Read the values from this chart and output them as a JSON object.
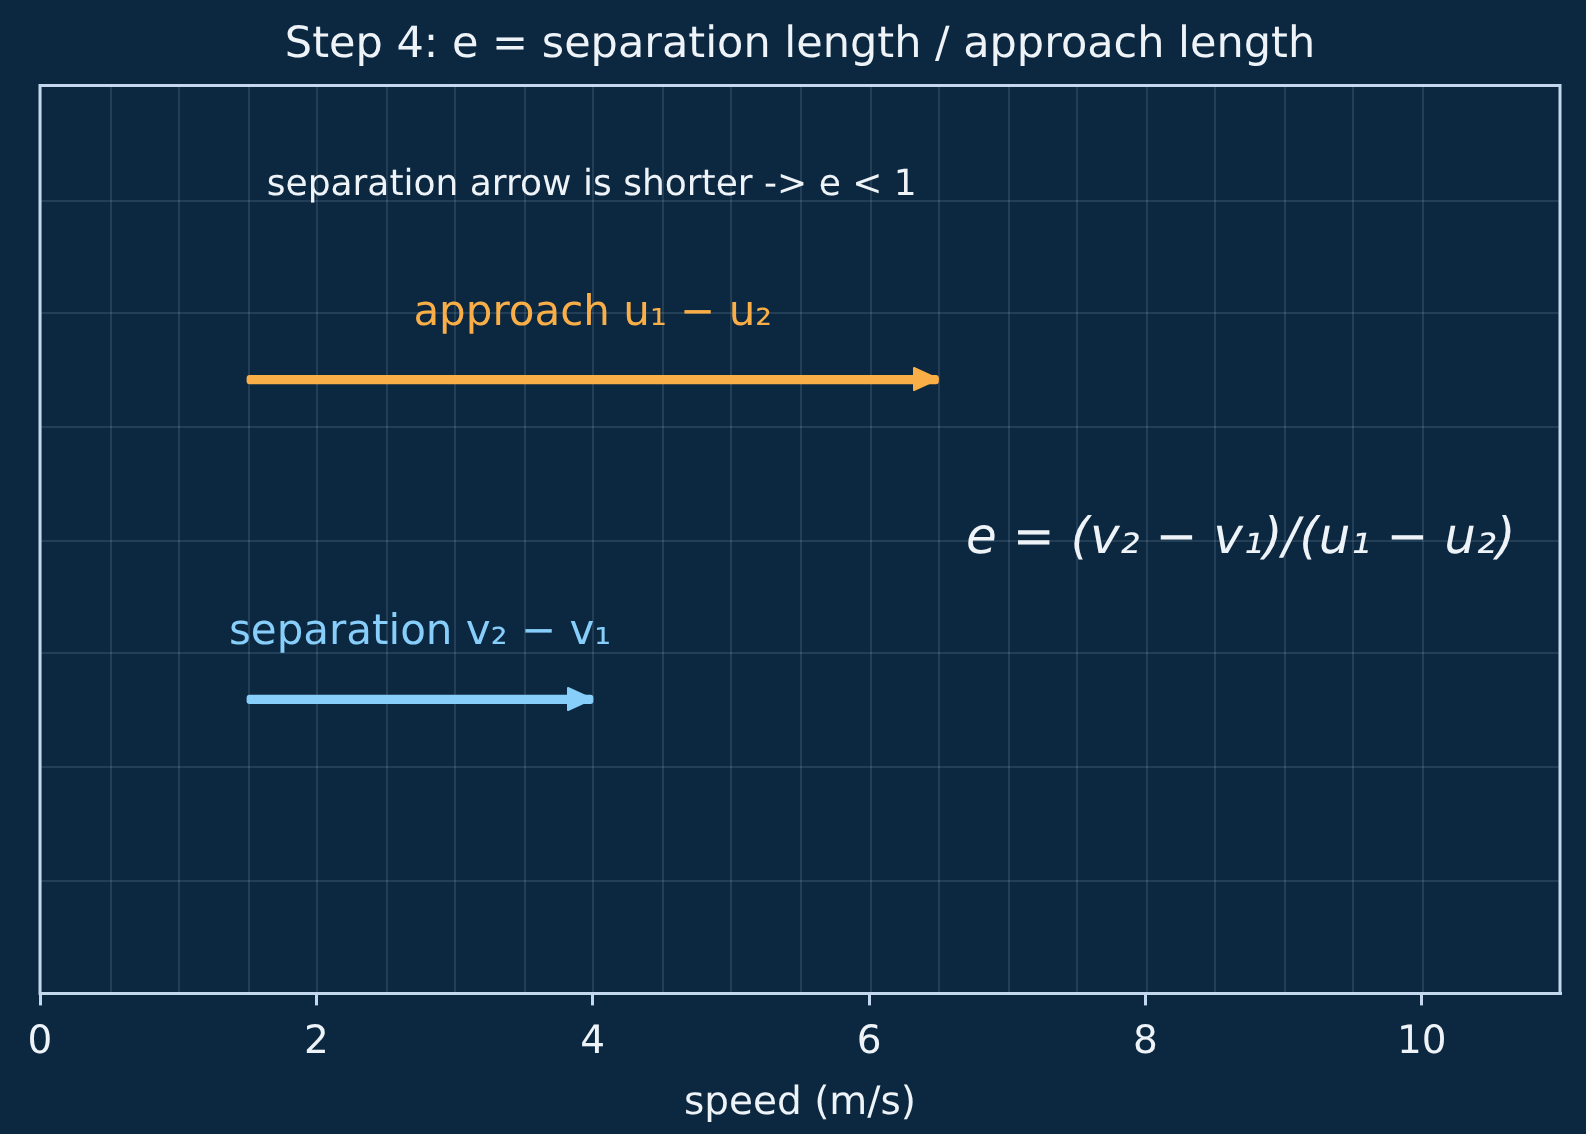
{
  "chart_data": {
    "type": "bar",
    "orientation": "horizontal",
    "title": "Step 4: e = separation length / approach length",
    "xlabel": "speed (m/s)",
    "categories": [
      "approach u₁ − u₂",
      "separation v₂ − v₁"
    ],
    "base": [
      1.5,
      1.5
    ],
    "values": [
      5,
      2.5
    ],
    "colors": [
      "#f9ae47",
      "#87cefa"
    ],
    "xlim": [
      0,
      11
    ],
    "xticks": [
      0,
      2,
      4,
      6,
      8,
      10
    ],
    "grid": true,
    "tick_labels": "x",
    "annotations": [
      "separation arrow is shorter -> e < 1",
      "e = (v₂ − v₁)/(u₁ − u₂)"
    ]
  }
}
